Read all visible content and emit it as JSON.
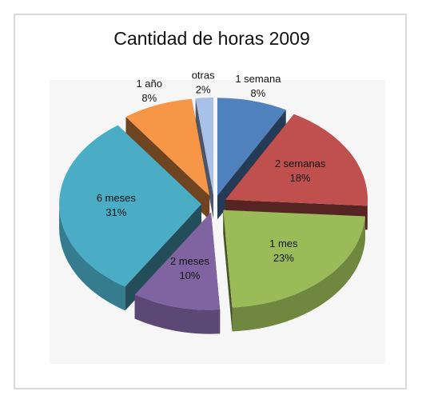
{
  "chart_data": {
    "type": "pie",
    "title": "Cantidad de horas  2009",
    "categories": [
      "1 semana",
      "2 semanas",
      "1 mes",
      "2 meses",
      "6 meses",
      "1 año",
      "otras"
    ],
    "values": [
      8,
      18,
      23,
      10,
      31,
      8,
      2
    ],
    "value_labels": [
      "8%",
      "18%",
      "23%",
      "10%",
      "31%",
      "8%",
      "2%"
    ],
    "colors": [
      "#4f81bd",
      "#c0504d",
      "#9bbb59",
      "#8064a2",
      "#4bacc6",
      "#f79646",
      "#a9c0e8"
    ]
  }
}
